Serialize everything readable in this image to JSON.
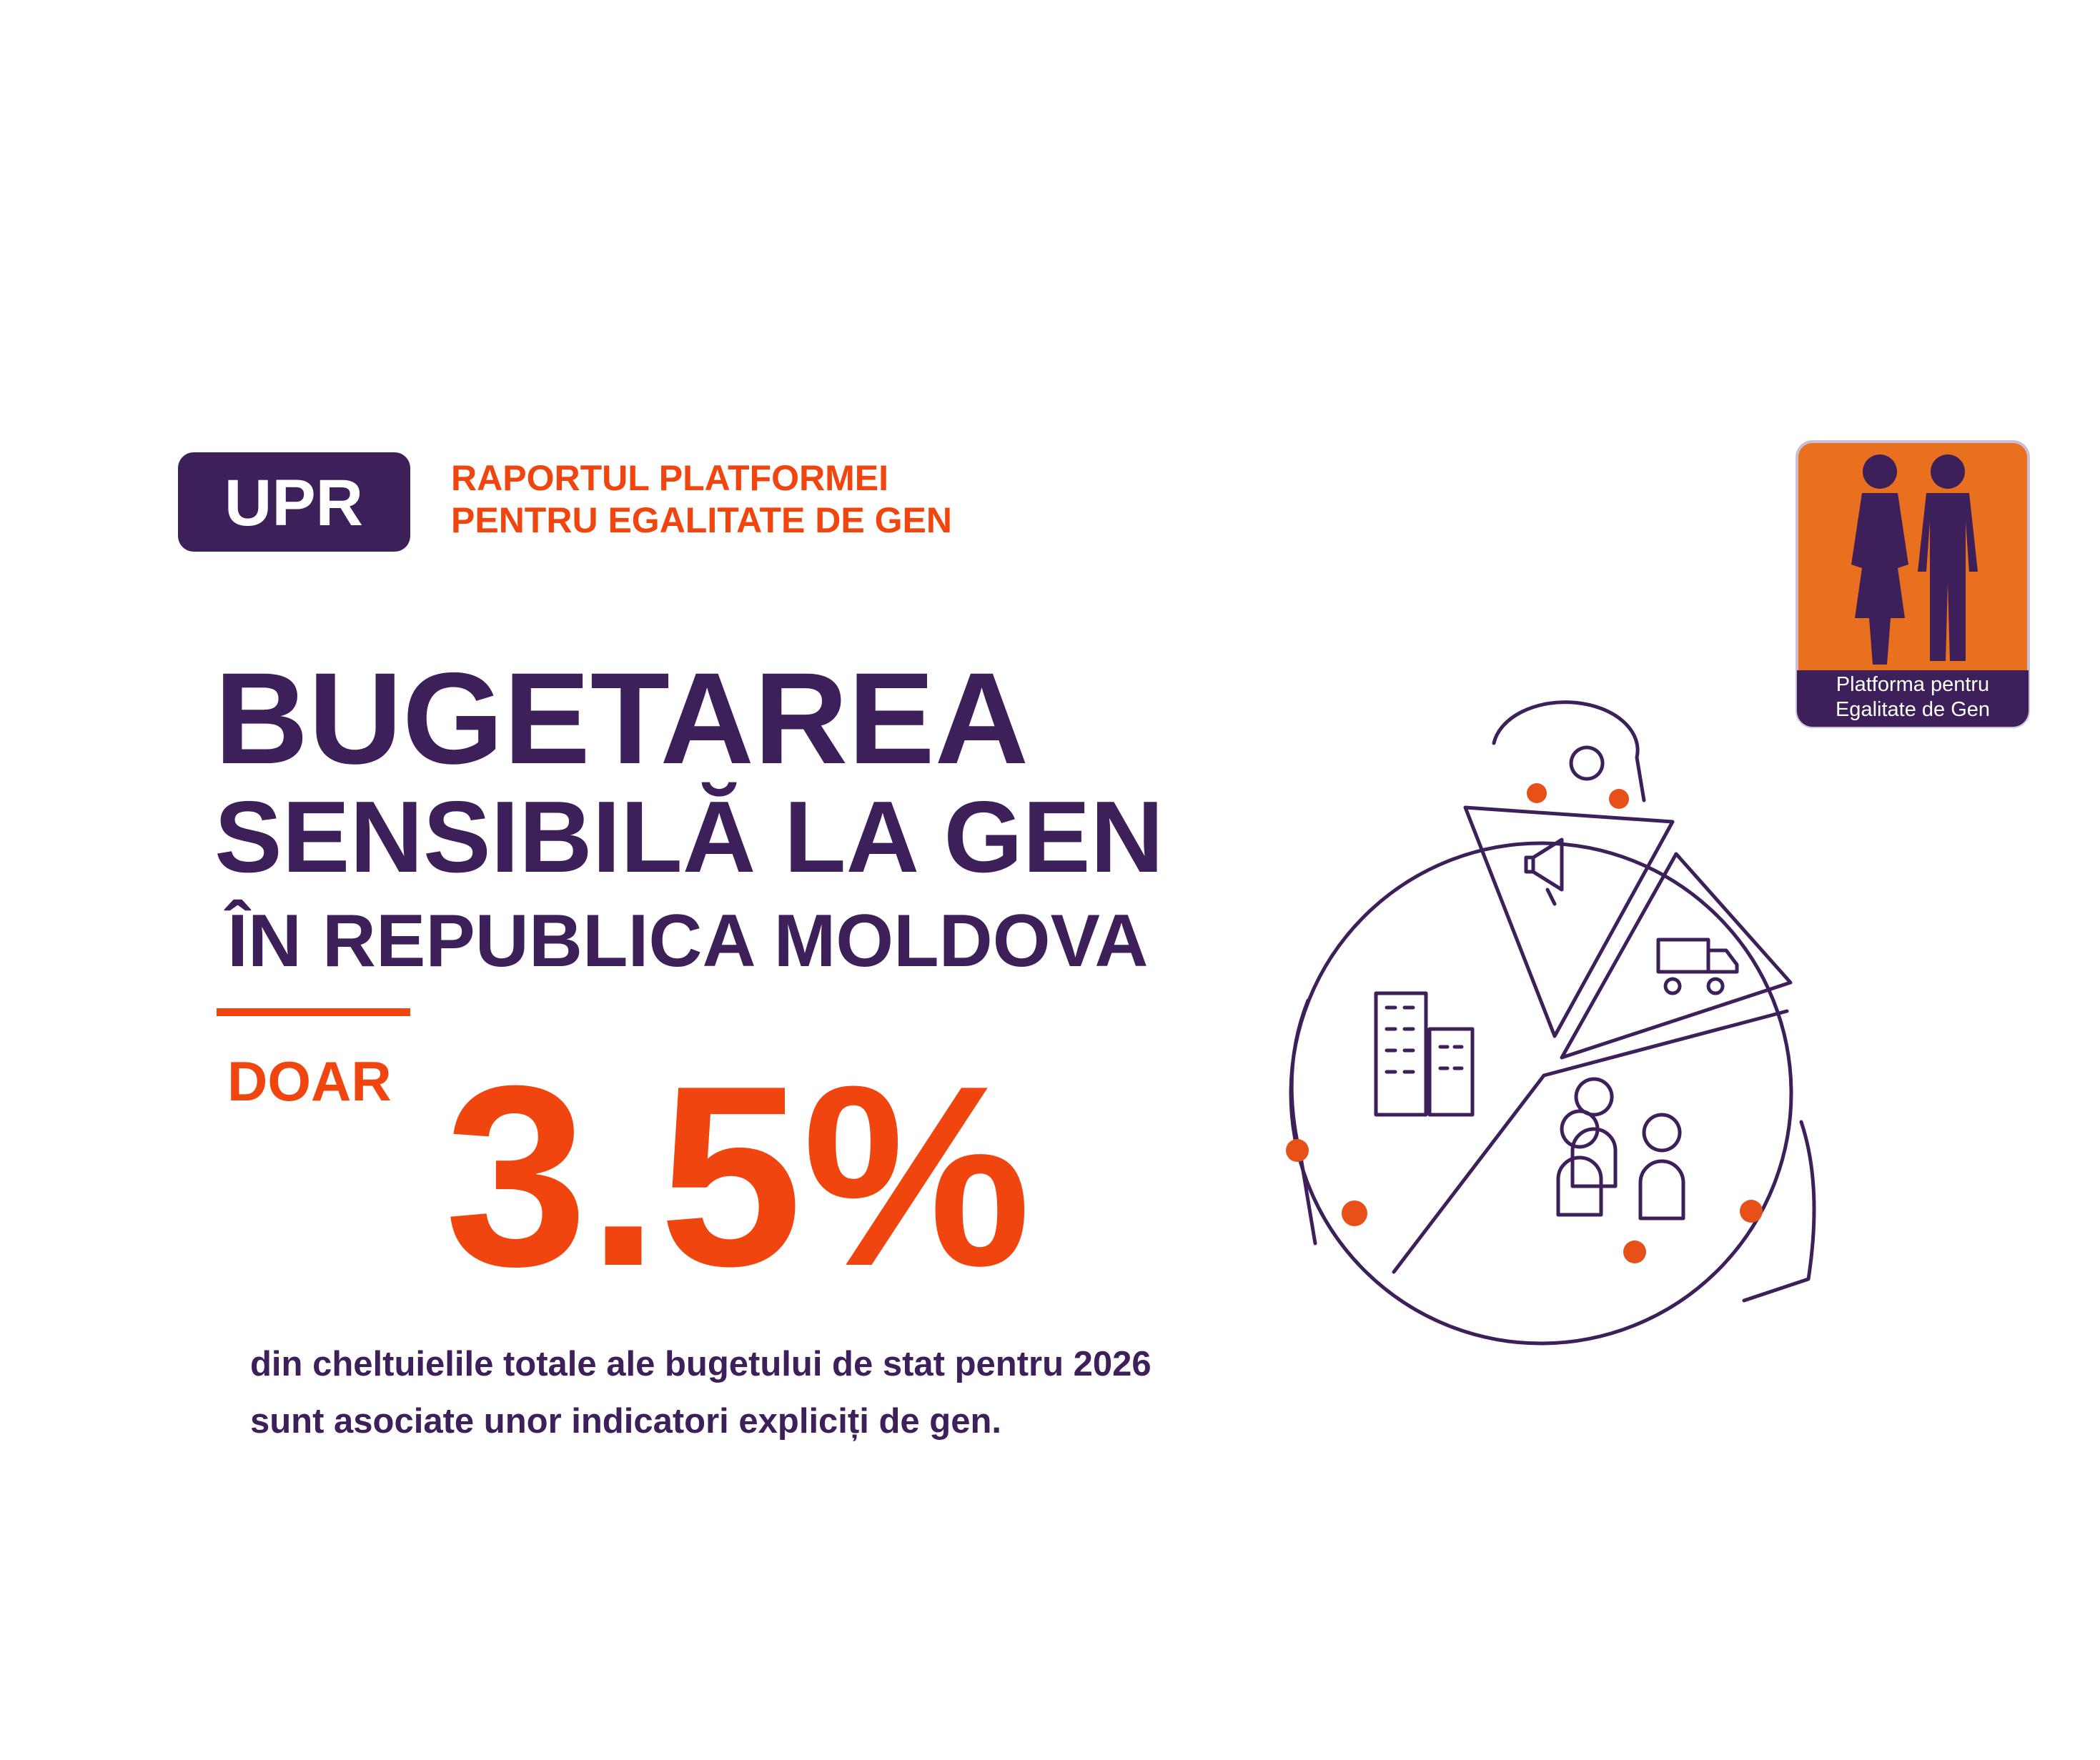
{
  "badge": "UPR",
  "report": {
    "line1": "RAPORTUL PLATFORMEI",
    "line2": "PENTRU EGALITATE DE GEN"
  },
  "logo": {
    "line1": "Platforma pentru",
    "line2": "Egalitate de Gen"
  },
  "title": {
    "line1": "BUGETAREA",
    "line2": "SENSIBILĂ LA GEN",
    "line3": "ÎN REPUBLICA MOLDOVA"
  },
  "highlight": {
    "prefix": "DOAR",
    "figure": "3.5%"
  },
  "description": {
    "line1": "din cheltuielile totale ale bugetului de stat pentru 2026",
    "line2": "sunt asociate unor indicatori expliciți de gen."
  }
}
